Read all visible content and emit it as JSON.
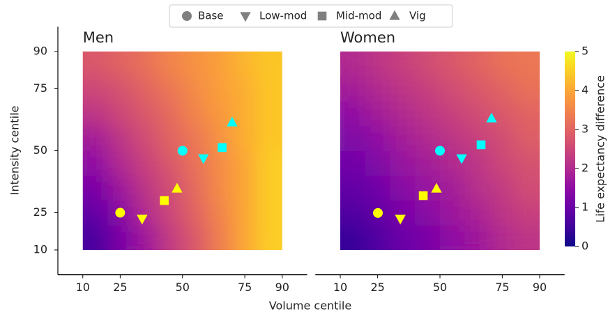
{
  "legend_markers_color": "#808080",
  "chart_data": [
    {
      "type": "scatter",
      "title": "Men",
      "xlabel": "Volume centile",
      "ylabel": "Intensity centile",
      "xlim": [
        0,
        100
      ],
      "ylim": [
        0,
        100
      ],
      "xticks": [
        10,
        25,
        50,
        75,
        90
      ],
      "yticks": [
        10,
        25,
        50,
        75,
        90
      ],
      "spines": [
        "left",
        "bottom"
      ],
      "group_colors": [
        "#ffff00",
        "#00ffff"
      ],
      "heatmap": {
        "colormap": "plasma",
        "zlim": [
          0,
          5
        ],
        "edges": [
          10,
          20,
          30,
          40,
          50,
          60,
          70,
          80,
          90
        ],
        "z": [
          [
            0.6,
            1.2,
            1.7,
            2.3,
            2.8,
            3.4,
            4.0,
            4.5
          ],
          [
            0.9,
            1.4,
            2.0,
            2.5,
            3.0,
            3.5,
            4.0,
            4.5
          ],
          [
            1.2,
            1.7,
            2.2,
            2.6,
            3.1,
            3.6,
            4.0,
            4.5
          ],
          [
            1.5,
            2.0,
            2.4,
            2.8,
            3.2,
            3.6,
            4.0,
            4.5
          ],
          [
            1.8,
            2.2,
            2.6,
            3.0,
            3.3,
            3.7,
            4.1,
            4.4
          ],
          [
            2.2,
            2.5,
            2.8,
            3.1,
            3.5,
            3.8,
            4.1,
            4.4
          ],
          [
            2.5,
            2.7,
            3.0,
            3.3,
            3.6,
            3.9,
            4.1,
            4.4
          ],
          [
            2.8,
            3.0,
            3.2,
            3.5,
            3.7,
            3.9,
            4.2,
            4.4
          ]
        ]
      },
      "series": [
        {
          "name": "Base",
          "marker": "circle",
          "x": [
            25,
            50
          ],
          "y": [
            25,
            50
          ]
        },
        {
          "name": "Low-mod",
          "marker": "triangle-down",
          "x": [
            33.8,
            58.4
          ],
          "y": [
            22.6,
            47
          ]
        },
        {
          "name": "Mid-mod",
          "marker": "square",
          "x": [
            42.7,
            65.9
          ],
          "y": [
            29.9,
            51.3
          ]
        },
        {
          "name": "Vig",
          "marker": "triangle-up",
          "x": [
            47.8,
            69.9
          ],
          "y": [
            34.7,
            61.4
          ]
        }
      ]
    },
    {
      "type": "scatter",
      "title": "Women",
      "xlim": [
        0,
        100
      ],
      "ylim": [
        0,
        100
      ],
      "xticks": [
        10,
        25,
        50,
        75,
        90
      ],
      "spines": [
        "bottom"
      ],
      "group_colors": [
        "#ffff00",
        "#00ffff"
      ],
      "heatmap": {
        "colormap": "plasma",
        "zlim": [
          0,
          5
        ],
        "edges": [
          10,
          20,
          30,
          40,
          50,
          60,
          70,
          80,
          90
        ],
        "z": [
          [
            0.4,
            0.7,
            1.0,
            1.2,
            1.5,
            1.7,
            2.0,
            2.2
          ],
          [
            0.7,
            0.9,
            1.2,
            1.4,
            1.7,
            1.9,
            2.2,
            2.4
          ],
          [
            0.9,
            1.1,
            1.4,
            1.6,
            1.8,
            2.1,
            2.3,
            2.6
          ],
          [
            1.1,
            1.3,
            1.6,
            1.8,
            2.0,
            2.2,
            2.5,
            2.7
          ],
          [
            1.3,
            1.5,
            1.8,
            2.0,
            2.2,
            2.4,
            2.6,
            2.9
          ],
          [
            1.5,
            1.8,
            2.0,
            2.2,
            2.4,
            2.6,
            2.8,
            3.0
          ],
          [
            1.8,
            2.0,
            2.2,
            2.4,
            2.6,
            2.8,
            3.0,
            3.2
          ],
          [
            2.0,
            2.2,
            2.4,
            2.6,
            2.8,
            3.0,
            3.2,
            3.3
          ]
        ]
      },
      "series": [
        {
          "name": "Base",
          "marker": "circle",
          "x": [
            25.1,
            50
          ],
          "y": [
            24.9,
            50
          ]
        },
        {
          "name": "Low-mod",
          "marker": "triangle-down",
          "x": [
            34.1,
            58.7
          ],
          "y": [
            22.6,
            47
          ]
        },
        {
          "name": "Mid-mod",
          "marker": "square",
          "x": [
            43.3,
            66.5
          ],
          "y": [
            31.9,
            52.4
          ]
        },
        {
          "name": "Vig",
          "marker": "triangle-up",
          "x": [
            48.6,
            70.7
          ],
          "y": [
            34.7,
            63
          ]
        }
      ],
      "colorbar": {
        "label": "Life expectancy difference",
        "lim": [
          0,
          5
        ],
        "ticks": [
          0,
          1,
          2,
          3,
          4,
          5
        ]
      }
    }
  ]
}
